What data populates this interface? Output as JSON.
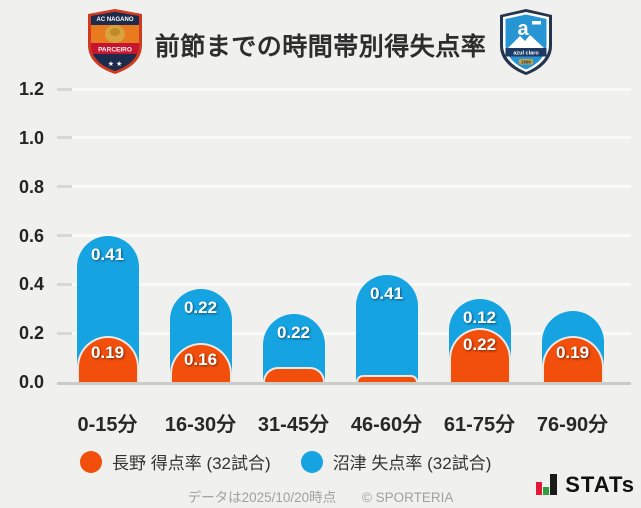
{
  "header": {
    "title": "前節までの時間帯別得失点率",
    "left_logo": {
      "team": "AC長野パルセイロ",
      "top_text": "AC NAGANO",
      "banner": "PARCEIRO",
      "stars": "★ ★"
    },
    "right_logo": {
      "team": "アスルクラロ沼津",
      "glyph": "a",
      "banner": "azul claro",
      "year": "1990"
    }
  },
  "chart_data": {
    "type": "bar",
    "stacked": true,
    "title": "前節までの時間帯別得失点率",
    "categories": [
      "0-15分",
      "16-30分",
      "31-45分",
      "46-60分",
      "61-75分",
      "76-90分"
    ],
    "series": [
      {
        "name": "長野 得点率 (32試合)",
        "color": "#f24e0c",
        "values": [
          0.19,
          0.16,
          0.06,
          0.03,
          0.22,
          0.19
        ],
        "labels": [
          "0.19",
          "0.16",
          "",
          "",
          "0.22",
          "0.19"
        ]
      },
      {
        "name": "沼津 失点率 (32試合)",
        "color": "#16a3e2",
        "values": [
          0.41,
          0.22,
          0.22,
          0.41,
          0.12,
          0.1
        ],
        "labels": [
          "0.41",
          "0.22",
          "0.22",
          "0.41",
          "0.12",
          ""
        ]
      }
    ],
    "xlabel": "",
    "ylabel": "",
    "ylim": [
      0,
      1.2
    ],
    "yticks": [
      "0.0",
      "0.2",
      "0.4",
      "0.6",
      "0.8",
      "1.0",
      "1.2"
    ],
    "grid": true,
    "legend_position": "bottom"
  },
  "legend": {
    "items": [
      {
        "label": "長野 得点率 (32試合)",
        "color": "#f24e0c"
      },
      {
        "label": "沼津 失点率 (32試合)",
        "color": "#16a3e2"
      }
    ]
  },
  "footer": {
    "note": "データは2025/10/20時点",
    "copyright": "© SPORTERIA",
    "brand": "STATs",
    "brand_icon_colors": {
      "red": "#e11937",
      "green": "#2f9e41",
      "black": "#1a1a1a"
    }
  },
  "colors": {
    "background": "#f0f0ee",
    "gridline": "#fafaf8",
    "baseline": "#cbcbc8"
  }
}
